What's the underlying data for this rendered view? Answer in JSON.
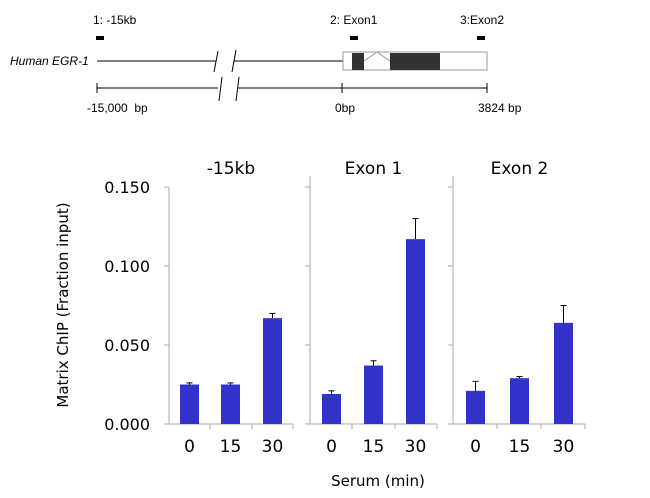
{
  "diagram": {
    "gene_label": "Human EGR-1",
    "sites": [
      {
        "label": "1: -15kb"
      },
      {
        "label": "2: Exon1"
      },
      {
        "label": "3:Exon2"
      }
    ],
    "scale_labels": [
      "-15,000  bp",
      "0bp",
      "3824 bp"
    ]
  },
  "chart_data": {
    "type": "bar",
    "ylabel": "Matrix ChIP (Fraction input)",
    "xlabel": "Serum (min)",
    "ylim": [
      0,
      0.15
    ],
    "yticks": [
      "0.000",
      "0.050",
      "0.100",
      "0.150"
    ],
    "ytick_values": [
      0,
      0.05,
      0.1,
      0.15
    ],
    "categories": [
      "0",
      "15",
      "30"
    ],
    "bar_color": "#3333cc",
    "grid": false,
    "panels": [
      {
        "title": "-15kb",
        "values": [
          0.025,
          0.025,
          0.067
        ],
        "error_upper": [
          0.026,
          0.026,
          0.07
        ]
      },
      {
        "title": "Exon 1",
        "values": [
          0.019,
          0.037,
          0.117
        ],
        "error_upper": [
          0.021,
          0.04,
          0.13
        ]
      },
      {
        "title": "Exon 2",
        "values": [
          0.021,
          0.029,
          0.064
        ],
        "error_upper": [
          0.027,
          0.03,
          0.075
        ]
      }
    ]
  }
}
